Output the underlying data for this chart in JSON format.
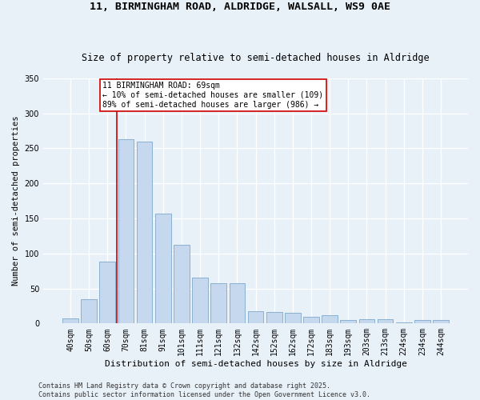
{
  "title": "11, BIRMINGHAM ROAD, ALDRIDGE, WALSALL, WS9 0AE",
  "subtitle": "Size of property relative to semi-detached houses in Aldridge",
  "xlabel": "Distribution of semi-detached houses by size in Aldridge",
  "ylabel": "Number of semi-detached properties",
  "categories": [
    "40sqm",
    "50sqm",
    "60sqm",
    "70sqm",
    "81sqm",
    "91sqm",
    "101sqm",
    "111sqm",
    "121sqm",
    "132sqm",
    "142sqm",
    "152sqm",
    "162sqm",
    "172sqm",
    "183sqm",
    "193sqm",
    "203sqm",
    "213sqm",
    "224sqm",
    "234sqm",
    "244sqm"
  ],
  "values": [
    7,
    35,
    88,
    263,
    260,
    157,
    112,
    65,
    57,
    57,
    18,
    16,
    15,
    9,
    12,
    5,
    6,
    6,
    2,
    5,
    5
  ],
  "bar_color": "#c5d8ed",
  "bar_edge_color": "#8ab0d0",
  "background_color": "#e8f0f8",
  "grid_color": "#ffffff",
  "annotation_text": "11 BIRMINGHAM ROAD: 69sqm\n← 10% of semi-detached houses are smaller (109)\n89% of semi-detached houses are larger (986) →",
  "annotation_box_color": "#ffffff",
  "annotation_box_edge": "#cc0000",
  "vline_x_index": 3,
  "vline_color": "#cc0000",
  "ylim": [
    0,
    350
  ],
  "yticks": [
    0,
    50,
    100,
    150,
    200,
    250,
    300,
    350
  ],
  "footer": "Contains HM Land Registry data © Crown copyright and database right 2025.\nContains public sector information licensed under the Open Government Licence v3.0.",
  "title_fontsize": 9.5,
  "subtitle_fontsize": 8.5,
  "xlabel_fontsize": 8,
  "ylabel_fontsize": 7.5,
  "tick_fontsize": 7,
  "annotation_fontsize": 7,
  "footer_fontsize": 6
}
